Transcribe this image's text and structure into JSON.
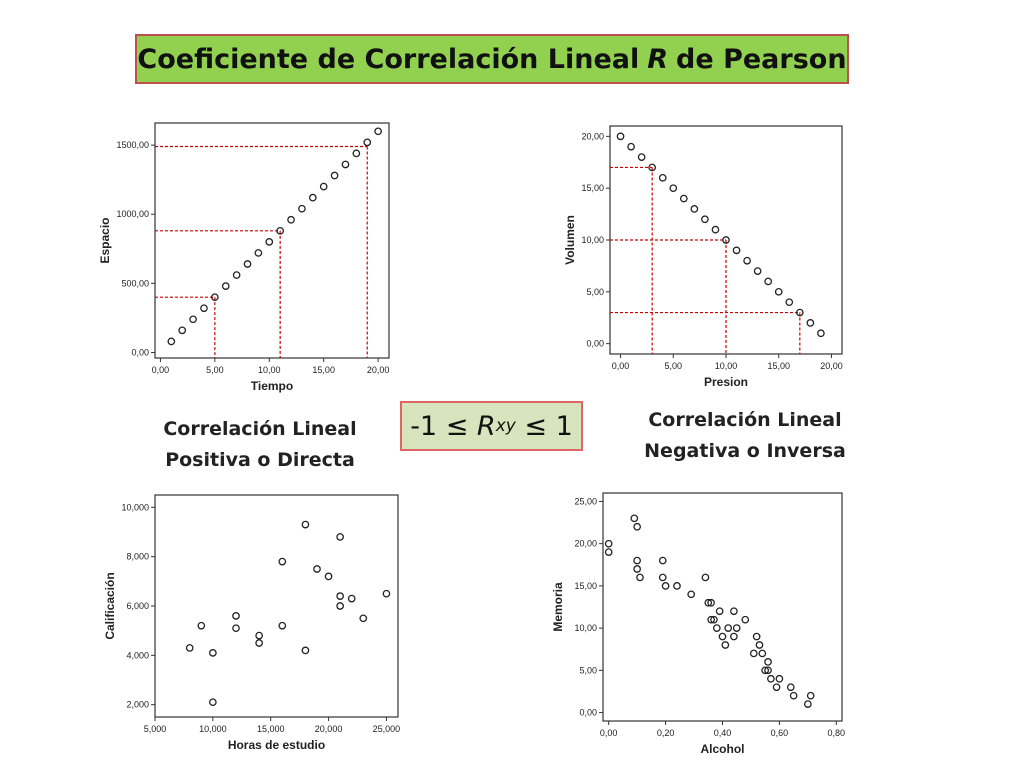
{
  "header": {
    "title_pre": "Coeficiente de Correlación Lineal",
    "title_r": "R",
    "title_post": "de Pearson"
  },
  "captions": {
    "positive_line1": "Correlación Lineal",
    "positive_line2": "Positiva o Directa",
    "negative_line1": "Correlación Lineal",
    "negative_line2": "Negativa o Inversa"
  },
  "formula": {
    "left": "-1 ≤",
    "symbol": "R",
    "subscript": "xy",
    "right": "≤ 1"
  },
  "colors": {
    "title_bg": "#92d050",
    "title_border": "#c0504d",
    "formula_bg": "#d7e4bd",
    "guide_line": "#cc0000"
  },
  "chart_data": [
    {
      "id": "positive",
      "type": "scatter",
      "xlabel": "Tiempo",
      "ylabel": "Espacio",
      "xlim": [
        -0.5,
        21
      ],
      "ylim": [
        -40,
        1660
      ],
      "xticks": [
        0,
        5,
        10,
        15,
        20
      ],
      "xtick_labels": [
        "0,00",
        "5,00",
        "10,00",
        "15,00",
        "20,00"
      ],
      "yticks": [
        0,
        500,
        1000,
        1500
      ],
      "ytick_labels": [
        "0,00",
        "500,00",
        "1000,00",
        "1500,00"
      ],
      "x": [
        1,
        2,
        3,
        4,
        5,
        6,
        7,
        8,
        9,
        10,
        11,
        12,
        13,
        14,
        15,
        16,
        17,
        18,
        19,
        20
      ],
      "y": [
        80,
        160,
        240,
        320,
        400,
        480,
        560,
        640,
        720,
        800,
        880,
        960,
        1040,
        1120,
        1200,
        1280,
        1360,
        1440,
        1520,
        1600
      ],
      "guides": [
        {
          "x": 5,
          "y": 400
        },
        {
          "x": 11,
          "y": 880
        },
        {
          "x": 19,
          "y": 1490
        }
      ]
    },
    {
      "id": "negative",
      "type": "scatter",
      "xlabel": "Presion",
      "ylabel": "Volumen",
      "xlim": [
        -1,
        21
      ],
      "ylim": [
        -1,
        21
      ],
      "xticks": [
        0,
        5,
        10,
        15,
        20
      ],
      "xtick_labels": [
        "0,00",
        "5,00",
        "10,00",
        "15,00",
        "20,00"
      ],
      "yticks": [
        0,
        5,
        10,
        15,
        20
      ],
      "ytick_labels": [
        "0,00",
        "5,00",
        "10,00",
        "15,00",
        "20,00"
      ],
      "x": [
        0,
        1,
        2,
        3,
        4,
        5,
        6,
        7,
        8,
        9,
        10,
        11,
        12,
        13,
        14,
        15,
        16,
        17,
        18,
        19
      ],
      "y": [
        20,
        19,
        18,
        17,
        16,
        15,
        14,
        13,
        12,
        11,
        10,
        9,
        8,
        7,
        6,
        5,
        4,
        3,
        2,
        1
      ],
      "guides": [
        {
          "x": 3,
          "y": 17
        },
        {
          "x": 10,
          "y": 10
        },
        {
          "x": 17,
          "y": 3
        }
      ]
    },
    {
      "id": "study",
      "type": "scatter",
      "xlabel": "Horas de estudio",
      "ylabel": "Calificación",
      "xlim": [
        5,
        26
      ],
      "ylim": [
        1.5,
        10.5
      ],
      "xticks": [
        5,
        10,
        15,
        20,
        25
      ],
      "xtick_labels": [
        "5,000",
        "10,000",
        "15,000",
        "20,000",
        "25,000"
      ],
      "yticks": [
        2,
        4,
        6,
        8,
        10
      ],
      "ytick_labels": [
        "2,000",
        "4,000",
        "6,000",
        "8,000",
        "10,000"
      ],
      "x": [
        8,
        9,
        10,
        10,
        12,
        12,
        14,
        14,
        16,
        16,
        18,
        18,
        19,
        20,
        21,
        21,
        21,
        22,
        23,
        25
      ],
      "y": [
        4.3,
        5.2,
        4.1,
        2.1,
        5.6,
        5.1,
        4.8,
        4.5,
        7.8,
        5.2,
        9.3,
        4.2,
        7.5,
        7.2,
        8.8,
        6.4,
        6.0,
        6.3,
        5.5,
        6.5
      ],
      "guides": []
    },
    {
      "id": "alcohol",
      "type": "scatter",
      "xlabel": "Alcohol",
      "ylabel": "Memoria",
      "xlim": [
        -0.02,
        0.82
      ],
      "ylim": [
        -1,
        26
      ],
      "xticks": [
        0,
        0.2,
        0.4,
        0.6,
        0.8
      ],
      "xtick_labels": [
        "0,00",
        "0,20",
        "0,40",
        "0,60",
        "0,80"
      ],
      "yticks": [
        0,
        5,
        10,
        15,
        20,
        25
      ],
      "ytick_labels": [
        "0,00",
        "5,00",
        "10,00",
        "15,00",
        "20,00",
        "25,00"
      ],
      "x": [
        0,
        0,
        0.09,
        0.1,
        0.1,
        0.1,
        0.11,
        0.19,
        0.19,
        0.2,
        0.24,
        0.29,
        0.34,
        0.35,
        0.36,
        0.36,
        0.37,
        0.38,
        0.39,
        0.4,
        0.41,
        0.42,
        0.44,
        0.44,
        0.45,
        0.48,
        0.51,
        0.52,
        0.53,
        0.54,
        0.55,
        0.56,
        0.56,
        0.57,
        0.59,
        0.6,
        0.64,
        0.65,
        0.7,
        0.71
      ],
      "y": [
        20,
        19,
        23,
        22,
        18,
        17,
        16,
        18,
        16,
        15,
        15,
        14,
        16,
        13,
        13,
        11,
        11,
        10,
        12,
        9,
        8,
        10,
        12,
        9,
        10,
        11,
        7,
        9,
        8,
        7,
        5,
        6,
        5,
        4,
        3,
        4,
        3,
        2,
        1,
        2
      ],
      "guides": []
    }
  ]
}
